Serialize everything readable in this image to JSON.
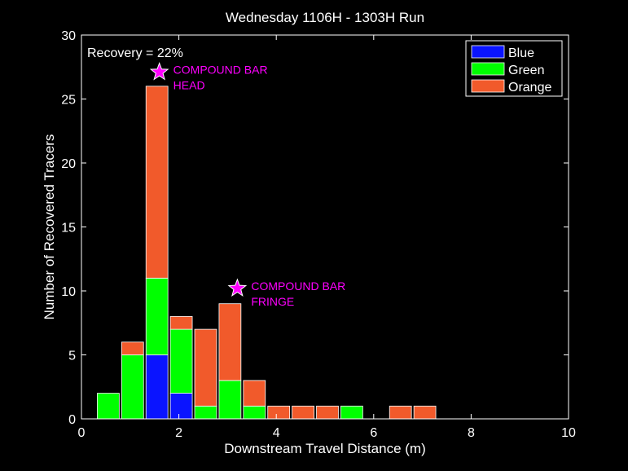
{
  "chart_data": {
    "type": "bar",
    "stacked": true,
    "title": "Wednesday 1106H - 1303H Run",
    "xlabel": "Downstream Travel Distance (m)",
    "ylabel": "Number of Recovered Tracers",
    "xlim": [
      0,
      10
    ],
    "ylim": [
      0,
      30
    ],
    "xticks": [
      0,
      2,
      4,
      6,
      8,
      10
    ],
    "yticks": [
      0,
      5,
      10,
      15,
      20,
      25,
      30
    ],
    "grid": false,
    "legend_position": "top-right",
    "bin_width": 0.5,
    "x": [
      0.55,
      1.05,
      1.55,
      2.05,
      2.55,
      3.05,
      3.55,
      4.05,
      4.55,
      5.05,
      5.55,
      6.55,
      7.05
    ],
    "series": [
      {
        "name": "Blue",
        "color": "#0a14ff",
        "values": [
          0,
          0,
          5,
          2,
          0,
          0,
          0,
          0,
          0,
          0,
          0,
          0,
          0
        ]
      },
      {
        "name": "Green",
        "color": "#00ff00",
        "values": [
          2,
          5,
          6,
          5,
          1,
          3,
          1,
          0,
          0,
          0,
          1,
          0,
          0
        ]
      },
      {
        "name": "Orange",
        "color": "#f15a2b",
        "values": [
          0,
          1,
          15,
          1,
          6,
          6,
          2,
          1,
          1,
          1,
          0,
          1,
          1
        ]
      }
    ],
    "annotations": [
      {
        "text": "Recovery = 22%"
      },
      {
        "marker": "star",
        "color": "#ff00ff",
        "x": 1.6,
        "y": 27.1,
        "lines": [
          "COMPOUND BAR",
          "HEAD"
        ]
      },
      {
        "marker": "star",
        "color": "#ff00ff",
        "x": 3.2,
        "y": 10.2,
        "lines": [
          "COMPOUND BAR",
          "FRINGE"
        ]
      }
    ]
  }
}
